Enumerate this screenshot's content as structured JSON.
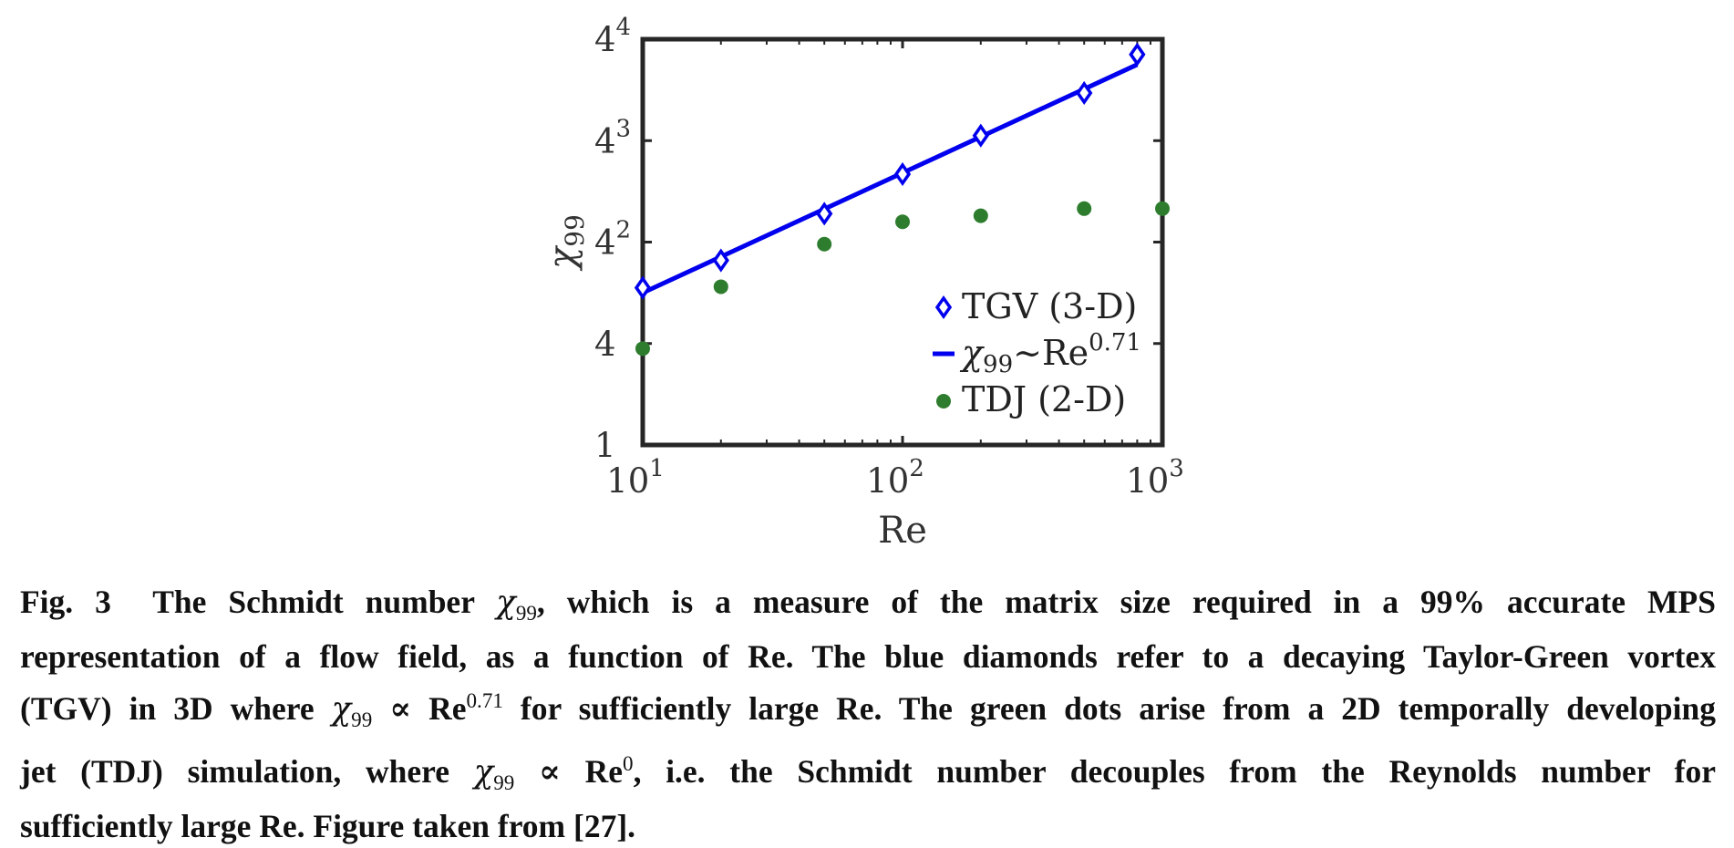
{
  "chart_data": {
    "type": "scatter",
    "x_scale": "log",
    "y_scale": "log-base-4",
    "xlim": [
      10,
      1000
    ],
    "ylim_exponent_of_4": [
      0,
      4
    ],
    "x_ticks": [
      {
        "value": 10,
        "base": "10",
        "exp": "1"
      },
      {
        "value": 100,
        "base": "10",
        "exp": "2"
      },
      {
        "value": 1000,
        "base": "10",
        "exp": "3"
      }
    ],
    "y_ticks": [
      {
        "exp_value": 0,
        "base": "1",
        "exp": ""
      },
      {
        "exp_value": 1,
        "base": "4",
        "exp": ""
      },
      {
        "exp_value": 2,
        "base": "4",
        "exp": "2"
      },
      {
        "exp_value": 3,
        "base": "4",
        "exp": "3"
      },
      {
        "exp_value": 4,
        "base": "4",
        "exp": "4"
      }
    ],
    "xlabel": "Re",
    "ylabel_main": "χ",
    "ylabel_sub": "99",
    "series": [
      {
        "name": "TGV (3-D)",
        "kind": "diamond",
        "color": "#0000ee",
        "x": [
          10,
          20,
          50,
          100,
          200,
          500,
          800
        ],
        "y_exp4": [
          1.55,
          1.82,
          2.28,
          2.67,
          3.05,
          3.47,
          3.85
        ]
      },
      {
        "name_main": "χ",
        "name_sub": "99",
        "name_rest": "∼Re",
        "name_sup": "0.71",
        "kind": "line",
        "color": "#0000ee",
        "x": [
          10,
          800
        ],
        "y_exp4": [
          1.5,
          3.75
        ]
      },
      {
        "name": "TDJ (2-D)",
        "kind": "dot",
        "color": "#2e7d2e",
        "x": [
          10,
          20,
          50,
          100,
          200,
          500,
          1000
        ],
        "y_exp4": [
          0.95,
          1.56,
          1.98,
          2.2,
          2.26,
          2.33,
          2.33
        ]
      }
    ],
    "legend_position": "bottom-right",
    "grid": false
  },
  "caption": {
    "label": "Fig. 3",
    "line1": {
      "a": "The Schmidt number ",
      "chi": "χ",
      "sub": "99",
      "b": ", which is a measure of the matrix size required in a 99% accurate MPS"
    },
    "line2": "representation of a flow field, as a function of Re. The blue diamonds refer to a decaying Taylor-Green vortex",
    "line3": {
      "a": "(TGV) in 3D where ",
      "chi": "χ",
      "sub": "99",
      "prop": " ∝ ",
      "re": "Re",
      "sup": "0.71",
      "b": " for sufficiently large Re. The green dots arise from a 2D temporally developing"
    },
    "line4": {
      "a": "jet (TDJ) simulation, where ",
      "chi": "χ",
      "sub": "99",
      "prop": " ∝ ",
      "re": "Re",
      "sup": "0",
      "b": ", i.e. the Schmidt number decouples from the Reynolds number for"
    },
    "line5": "sufficiently large Re. Figure taken from [27]."
  }
}
